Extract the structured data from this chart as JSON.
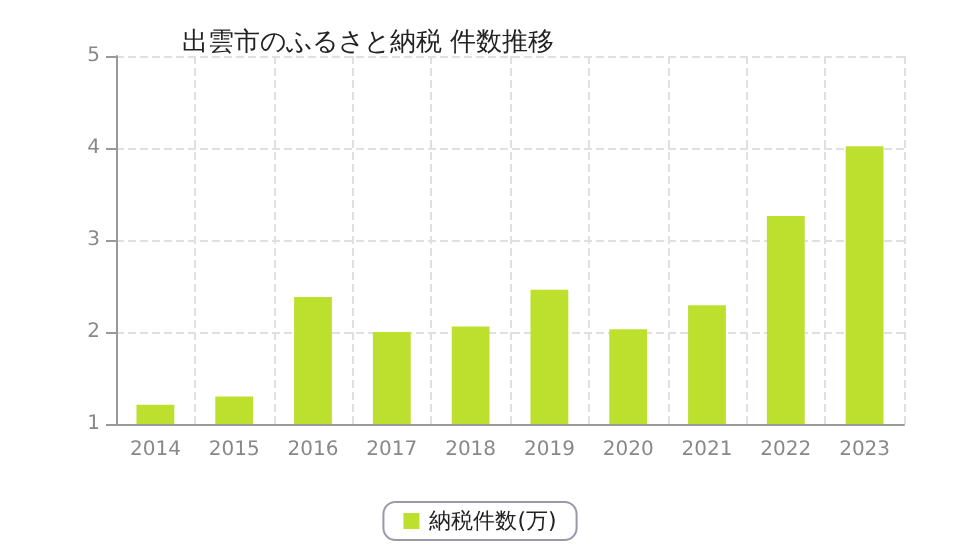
{
  "chart_data": {
    "type": "bar",
    "title": "出雲市のふるさと納税 件数推移",
    "categories": [
      "2014",
      "2015",
      "2016",
      "2017",
      "2018",
      "2019",
      "2020",
      "2021",
      "2022",
      "2023"
    ],
    "series": [
      {
        "name": "納税件数(万)",
        "color": "#bde02f",
        "values": [
          1.21,
          1.3,
          2.38,
          2.0,
          2.06,
          2.46,
          2.03,
          2.29,
          3.26,
          4.02
        ]
      }
    ],
    "ylim": [
      1,
      5
    ],
    "yticks": [
      1,
      2,
      3,
      4,
      5
    ],
    "grid": true,
    "legend": "bottom"
  }
}
